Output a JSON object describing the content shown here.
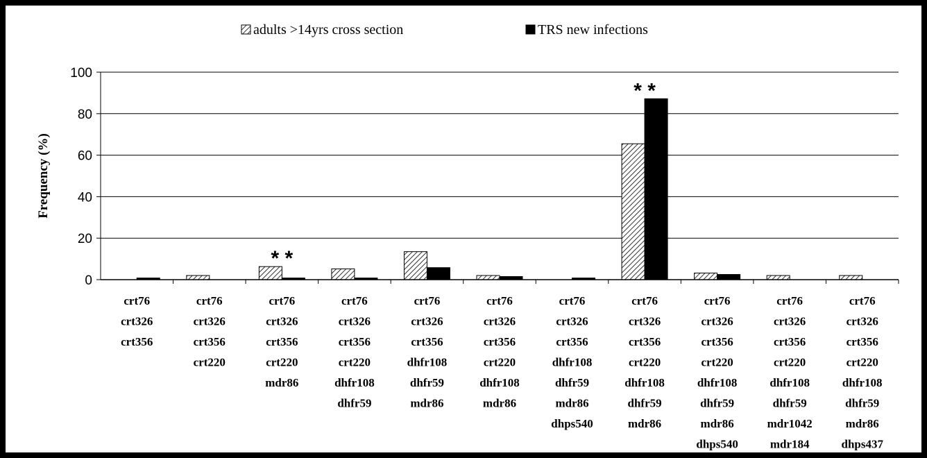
{
  "chart_data": {
    "type": "bar",
    "title": "",
    "xlabel": "",
    "ylabel": "Frequency (%)",
    "ylim": [
      0,
      100
    ],
    "yticks": [
      0,
      20,
      40,
      60,
      80,
      100
    ],
    "grid": true,
    "legend_position": "top",
    "categories": [
      [
        "crt76",
        "crt326",
        "crt356"
      ],
      [
        "crt76",
        "crt326",
        "crt356",
        "crt220"
      ],
      [
        "crt76",
        "crt326",
        "crt356",
        "crt220",
        "mdr86"
      ],
      [
        "crt76",
        "crt326",
        "crt356",
        "crt220",
        "dhfr108",
        "dhfr59"
      ],
      [
        "crt76",
        "crt326",
        "crt356",
        "dhfr108",
        "dhfr59",
        "mdr86"
      ],
      [
        "crt76",
        "crt326",
        "crt356",
        "crt220",
        "dhfr108",
        "mdr86"
      ],
      [
        "crt76",
        "crt326",
        "crt356",
        "dhfr108",
        "dhfr59",
        "mdr86",
        "dhps540"
      ],
      [
        "crt76",
        "crt326",
        "crt356",
        "crt220",
        "dhfr108",
        "dhfr59",
        "mdr86"
      ],
      [
        "crt76",
        "crt326",
        "crt356",
        "crt220",
        "dhfr108",
        "dhfr59",
        "mdr86",
        "dhps540"
      ],
      [
        "crt76",
        "crt326",
        "crt356",
        "crt220",
        "dhfr108",
        "dhfr59",
        "mdr1042",
        "mdr184"
      ],
      [
        "crt76",
        "crt326",
        "crt356",
        "crt220",
        "dhfr108",
        "dhfr59",
        "mdr86",
        "dhps437"
      ]
    ],
    "series": [
      {
        "name": "adults >14yrs cross section",
        "pattern": "hatched",
        "color": "#ffffff",
        "values": [
          0,
          2,
          6.3,
          5.2,
          13.5,
          2,
          0,
          65.5,
          3.2,
          2,
          2
        ]
      },
      {
        "name": "TRS new infections",
        "pattern": "solid",
        "color": "#000000",
        "values": [
          0.8,
          0,
          0.8,
          0.8,
          5.8,
          1.5,
          0.8,
          87.2,
          2.5,
          0,
          0
        ]
      }
    ],
    "annotations": [
      {
        "text": "* *",
        "category_index": 2
      },
      {
        "text": "* *",
        "category_index": 7
      }
    ]
  }
}
